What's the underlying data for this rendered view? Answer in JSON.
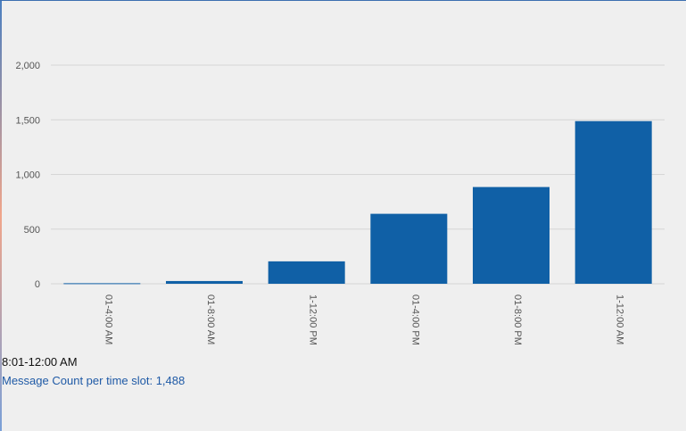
{
  "chart_data": {
    "type": "bar",
    "categories": [
      "01-4:00 AM",
      "01-8:00 AM",
      "1-12:00 PM",
      "01-4:00 PM",
      "01-8:00 PM",
      "1-12:00 AM"
    ],
    "values": [
      5,
      25,
      205,
      640,
      885,
      1488
    ],
    "ylim": [
      0,
      2000
    ],
    "yticks": [
      0,
      500,
      1000,
      1500,
      2000
    ],
    "ytick_labels": [
      "0",
      "500",
      "1,000",
      "1,500",
      "2,000"
    ],
    "grid": true,
    "bar_color": "#1060a6"
  },
  "tooltip": {
    "slot": "8:01-12:00 AM",
    "count_label": "Message Count per time slot: 1,488"
  }
}
